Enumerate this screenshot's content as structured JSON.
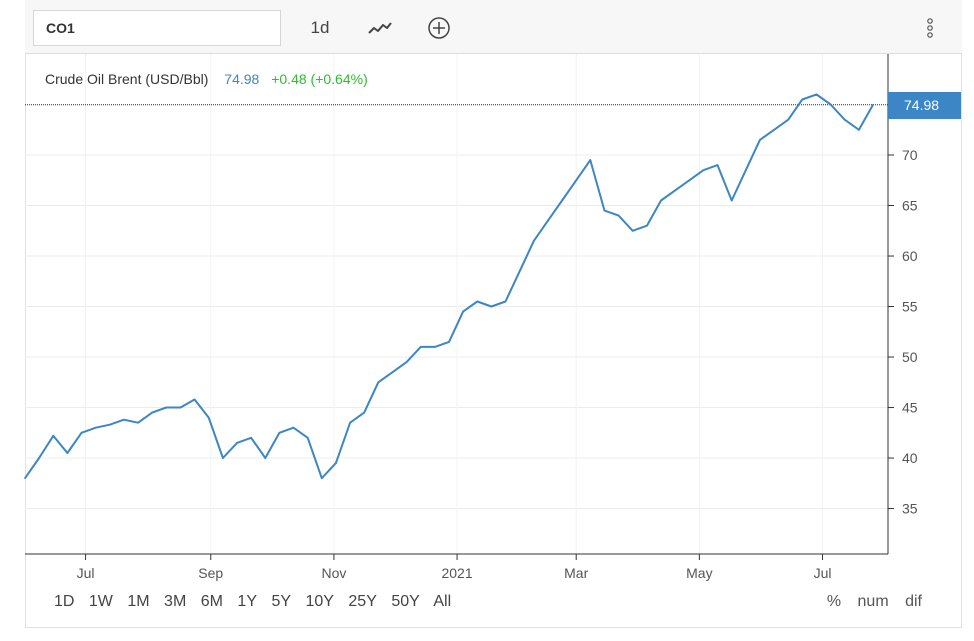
{
  "toolbar": {
    "symbol": "CO1",
    "interval": "1d",
    "chart_type_icon": "line-chart-icon",
    "add_icon": "plus-circle-icon",
    "menu_icon": "vertical-dots-icon"
  },
  "legend": {
    "name": "Crude Oil Brent (USD/Bbl)",
    "last": "74.98",
    "change": "+0.48 (+0.64%)"
  },
  "price_tag": "74.98",
  "ranges": [
    "1D",
    "1W",
    "1M",
    "3M",
    "6M",
    "1Y",
    "5Y",
    "10Y",
    "25Y",
    "50Y",
    "All"
  ],
  "modes": [
    "%",
    "num",
    "dif"
  ],
  "colors": {
    "line": "#3d86c6",
    "change_positive": "#2ebd2e",
    "grid": "#ececec",
    "last_price_line": "#1a1aa0"
  },
  "chart_data": {
    "type": "line",
    "title": "",
    "xlabel": "",
    "ylabel": "",
    "ylim": [
      30.5,
      80
    ],
    "x_ticks": [
      "Jul",
      "Sep",
      "Nov",
      "2021",
      "Mar",
      "May",
      "Jul"
    ],
    "y_ticks": [
      35,
      40,
      45,
      50,
      55,
      60,
      65,
      70
    ],
    "last_value": 74.98,
    "grid": true,
    "series": [
      {
        "name": "",
        "x": [
          "2020-06-01",
          "2020-06-08",
          "2020-06-15",
          "2020-06-22",
          "2020-06-29",
          "2020-07-06",
          "2020-07-13",
          "2020-07-20",
          "2020-07-27",
          "2020-08-03",
          "2020-08-10",
          "2020-08-17",
          "2020-08-24",
          "2020-08-31",
          "2020-09-07",
          "2020-09-14",
          "2020-09-21",
          "2020-09-28",
          "2020-10-05",
          "2020-10-12",
          "2020-10-19",
          "2020-10-26",
          "2020-11-02",
          "2020-11-09",
          "2020-11-16",
          "2020-11-23",
          "2020-11-30",
          "2020-12-07",
          "2020-12-14",
          "2020-12-21",
          "2020-12-28",
          "2021-01-04",
          "2021-01-11",
          "2021-01-18",
          "2021-01-25",
          "2021-02-01",
          "2021-02-08",
          "2021-02-15",
          "2021-02-22",
          "2021-03-01",
          "2021-03-08",
          "2021-03-15",
          "2021-03-22",
          "2021-03-29",
          "2021-04-05",
          "2021-04-12",
          "2021-04-19",
          "2021-04-26",
          "2021-05-03",
          "2021-05-10",
          "2021-05-17",
          "2021-05-24",
          "2021-05-31",
          "2021-06-07",
          "2021-06-14",
          "2021-06-21",
          "2021-06-28",
          "2021-07-05",
          "2021-07-12",
          "2021-07-19",
          "2021-07-26"
        ],
        "y": [
          38.0,
          40.0,
          42.2,
          40.5,
          42.5,
          43.0,
          43.3,
          43.8,
          43.5,
          44.5,
          45.0,
          45.0,
          45.8,
          44.0,
          40.0,
          41.5,
          42.0,
          40.0,
          42.5,
          43.0,
          42.0,
          38.0,
          39.5,
          43.5,
          44.5,
          47.5,
          48.5,
          49.5,
          51.0,
          51.0,
          51.5,
          54.5,
          55.5,
          55.0,
          55.5,
          58.5,
          61.5,
          63.5,
          65.5,
          67.5,
          69.5,
          64.5,
          64.0,
          62.5,
          63.0,
          65.5,
          66.5,
          67.5,
          68.5,
          69.0,
          65.5,
          68.5,
          71.5,
          72.5,
          73.5,
          75.5,
          76.0,
          75.0,
          73.5,
          72.5,
          74.98
        ]
      }
    ]
  }
}
